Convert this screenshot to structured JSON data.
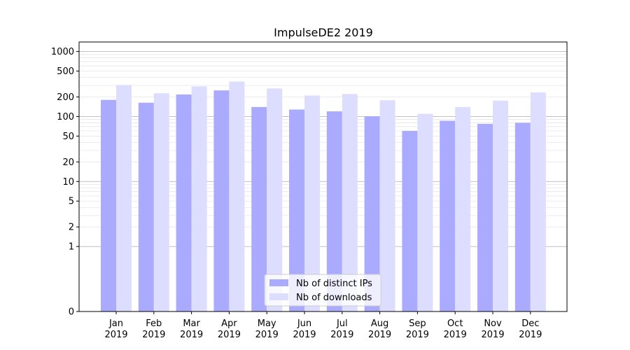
{
  "chart_data": {
    "type": "bar",
    "title": "ImpulseDE2 2019",
    "xlabel": "",
    "ylabel": "",
    "yscale": "symlog",
    "ylim": [
      0,
      1400
    ],
    "grid": true,
    "legend_position": "lower-center",
    "categories": [
      {
        "month": "Jan",
        "year": "2019"
      },
      {
        "month": "Feb",
        "year": "2019"
      },
      {
        "month": "Mar",
        "year": "2019"
      },
      {
        "month": "Apr",
        "year": "2019"
      },
      {
        "month": "May",
        "year": "2019"
      },
      {
        "month": "Jun",
        "year": "2019"
      },
      {
        "month": "Jul",
        "year": "2019"
      },
      {
        "month": "Aug",
        "year": "2019"
      },
      {
        "month": "Sep",
        "year": "2019"
      },
      {
        "month": "Oct",
        "year": "2019"
      },
      {
        "month": "Nov",
        "year": "2019"
      },
      {
        "month": "Dec",
        "year": "2019"
      }
    ],
    "y_ticks": [
      {
        "value": 0,
        "label": "0"
      },
      {
        "value": 1,
        "label": "1"
      },
      {
        "value": 2,
        "label": "2"
      },
      {
        "value": 5,
        "label": "5"
      },
      {
        "value": 10,
        "label": "10"
      },
      {
        "value": 20,
        "label": "20"
      },
      {
        "value": 50,
        "label": "50"
      },
      {
        "value": 100,
        "label": "100"
      },
      {
        "value": 200,
        "label": "200"
      },
      {
        "value": 500,
        "label": "500"
      },
      {
        "value": 1000,
        "label": "1000"
      }
    ],
    "series": [
      {
        "name": "Nb of distinct IPs",
        "color": "#aaaaff",
        "values": [
          180,
          163,
          218,
          252,
          140,
          128,
          120,
          101,
          60,
          86,
          77,
          80
        ]
      },
      {
        "name": "Nb of downloads",
        "color": "#ddddff",
        "values": [
          305,
          228,
          290,
          345,
          270,
          210,
          222,
          178,
          110,
          140,
          175,
          235
        ]
      }
    ]
  }
}
